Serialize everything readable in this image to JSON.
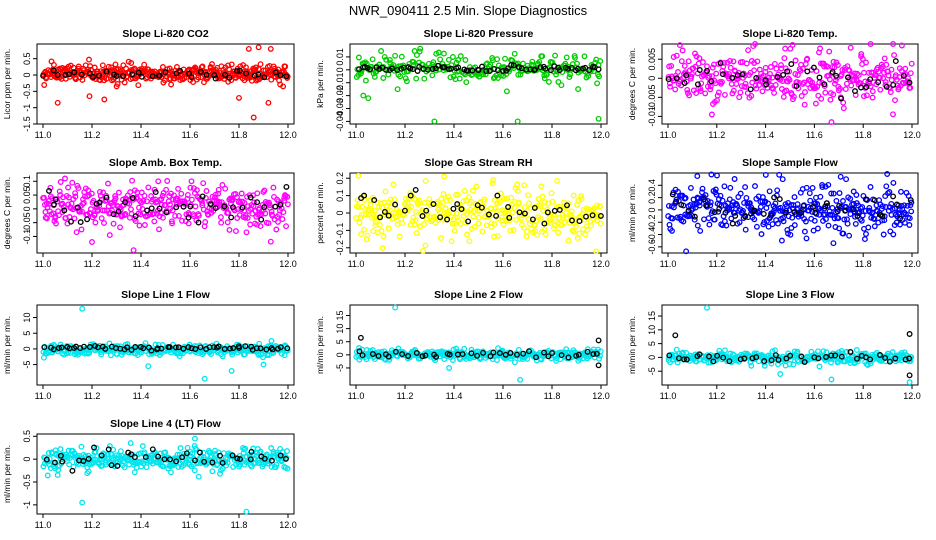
{
  "figure_title": "NWR_090411  2.5 Min. Slope Diagnostics",
  "chart_data": [
    {
      "type": "scatter",
      "title": "Slope Li-820 CO2",
      "ylabel": "Licor ppm per min.",
      "color": "#ff0000",
      "xlim": [
        11.0,
        12.0
      ],
      "ylim": [
        -1.5,
        0.95
      ],
      "x_ticks": [
        "11.0",
        "11.2",
        "11.4",
        "11.6",
        "11.8",
        "12.0"
      ],
      "y_ticks": [
        -1.5,
        -1.0,
        -0.5,
        0.0,
        0.5
      ],
      "series": [
        {
          "name": "all",
          "color": "#ff0000",
          "count": 380,
          "center": 0.05,
          "spread": 0.14,
          "outliers": [
            [
              11.06,
              -0.85
            ],
            [
              11.19,
              -0.65
            ],
            [
              11.25,
              -0.75
            ],
            [
              11.8,
              -0.7
            ],
            [
              11.84,
              0.8
            ],
            [
              11.86,
              -1.3
            ],
            [
              11.88,
              0.85
            ],
            [
              11.92,
              -0.85
            ],
            [
              11.93,
              0.8
            ],
            [
              11.98,
              -0.35
            ]
          ]
        },
        {
          "name": "selected",
          "color": "#000000",
          "count": 40,
          "center": 0.02,
          "spread": 0.08,
          "outliers": []
        }
      ]
    },
    {
      "type": "scatter",
      "title": "Slope Li-820 Pressure",
      "ylabel": "kPa per min.",
      "color": "#00cc00",
      "xlim": [
        11.0,
        12.0
      ],
      "ylim": [
        -0.042,
        0.02
      ],
      "x_ticks": [
        "11.0",
        "11.2",
        "11.4",
        "11.6",
        "11.8",
        "12.0"
      ],
      "y_ticks": [
        -0.04,
        -0.03,
        -0.02,
        -0.01,
        0.0,
        0.01
      ],
      "series": [
        {
          "name": "all",
          "color": "#00cc00",
          "count": 260,
          "center": 0.001,
          "spread": 0.005,
          "outliers": [
            [
              11.03,
              -0.02
            ],
            [
              11.32,
              -0.04
            ],
            [
              11.66,
              -0.04
            ],
            [
              11.99,
              -0.038
            ],
            [
              11.17,
              -0.015
            ],
            [
              11.05,
              -0.022
            ]
          ]
        },
        {
          "name": "selected",
          "color": "#000000",
          "count": 70,
          "center": 0.001,
          "spread": 0.0015,
          "outliers": []
        }
      ]
    },
    {
      "type": "scatter",
      "title": "Slope Li-820 Temp.",
      "ylabel": "degrees C per min.",
      "color": "#ff00ff",
      "xlim": [
        11.0,
        12.0
      ],
      "ylim": [
        -0.012,
        0.009
      ],
      "x_ticks": [
        "11.0",
        "11.2",
        "11.4",
        "11.6",
        "11.8",
        "12.0"
      ],
      "y_ticks": [
        -0.01,
        -0.005,
        0.0,
        0.005
      ],
      "series": [
        {
          "name": "all",
          "color": "#ff00ff",
          "count": 360,
          "center": 0.0,
          "spread": 0.0035,
          "outliers": [
            [
              11.67,
              -0.0115
            ],
            [
              11.48,
              0.0078
            ],
            [
              11.18,
              -0.0095
            ]
          ]
        },
        {
          "name": "selected",
          "color": "#000000",
          "count": 40,
          "center": 0.0003,
          "spread": 0.0025,
          "outliers": []
        }
      ]
    },
    {
      "type": "scatter",
      "title": "Slope Amb. Box Temp.",
      "ylabel": "degrees C per min.",
      "color": "#ff00ff",
      "xlim": [
        11.0,
        12.0
      ],
      "ylim": [
        -0.16,
        0.13
      ],
      "x_ticks": [
        "11.0",
        "11.2",
        "11.4",
        "11.6",
        "11.8",
        "12.0"
      ],
      "y_ticks": [
        -0.1,
        -0.05,
        0.0,
        0.05,
        0.1
      ],
      "series": [
        {
          "name": "all",
          "color": "#ff00ff",
          "count": 380,
          "center": 0.01,
          "spread": 0.04,
          "outliers": [
            [
              11.09,
              0.11
            ],
            [
              11.37,
              -0.15
            ],
            [
              11.2,
              -0.12
            ],
            [
              11.47,
              0.1
            ]
          ]
        },
        {
          "name": "selected",
          "color": "#000000",
          "count": 40,
          "center": 0.0,
          "spread": 0.03,
          "outliers": []
        }
      ]
    },
    {
      "type": "scatter",
      "title": "Slope Gas Stream RH",
      "ylabel": "percent per min.",
      "color": "#ffff00",
      "xlim": [
        11.0,
        12.0
      ],
      "ylim": [
        -0.23,
        0.23
      ],
      "x_ticks": [
        "11.0",
        "11.2",
        "11.4",
        "11.6",
        "11.8",
        "12.0"
      ],
      "y_ticks": [
        -0.2,
        -0.1,
        0.0,
        0.1,
        0.2
      ],
      "series": [
        {
          "name": "all",
          "color": "#ffff00",
          "count": 360,
          "center": 0.0,
          "spread": 0.07,
          "outliers": [
            [
              11.36,
              0.21
            ],
            [
              11.98,
              -0.22
            ],
            [
              11.56,
              0.19
            ]
          ]
        },
        {
          "name": "selected",
          "color": "#000000",
          "count": 40,
          "center": 0.0,
          "spread": 0.06,
          "outliers": []
        }
      ]
    },
    {
      "type": "scatter",
      "title": "Slope Sample Flow",
      "ylabel": "ml/min per min.",
      "color": "#0000ff",
      "xlim": [
        11.0,
        12.0
      ],
      "ylim": [
        -0.7,
        0.6
      ],
      "x_ticks": [
        "11.0",
        "11.2",
        "11.4",
        "11.6",
        "11.8",
        "12.0"
      ],
      "y_ticks": [
        -0.6,
        -0.4,
        -0.2,
        0.0,
        0.2,
        0.4
      ],
      "series": [
        {
          "name": "all",
          "color": "#0000ff",
          "count": 380,
          "center": 0.0,
          "spread": 0.2,
          "outliers": [
            [
              11.12,
              0.55
            ],
            [
              11.47,
              0.5
            ],
            [
              11.73,
              0.5
            ]
          ]
        },
        {
          "name": "selected",
          "color": "#000000",
          "count": 40,
          "center": 0.0,
          "spread": 0.12,
          "outliers": []
        }
      ]
    },
    {
      "type": "scatter",
      "title": "Slope Line 1 Flow",
      "ylabel": "ml/min per min.",
      "color": "#00e5ee",
      "xlim": [
        11.0,
        12.0
      ],
      "ylim": [
        -11.5,
        14
      ],
      "x_ticks": [
        "11.0",
        "11.2",
        "11.4",
        "11.6",
        "11.8",
        "12.0"
      ],
      "y_ticks": [
        -5,
        0,
        5,
        10
      ],
      "series": [
        {
          "name": "all",
          "color": "#00e5ee",
          "count": 320,
          "center": -0.3,
          "spread": 0.9,
          "outliers": [
            [
              11.16,
              12.8
            ],
            [
              11.66,
              -9.5
            ],
            [
              11.77,
              -7.0
            ],
            [
              11.43,
              -5.5
            ],
            [
              11.9,
              -5.0
            ]
          ]
        },
        {
          "name": "selected",
          "color": "#000000",
          "count": 60,
          "center": 0.3,
          "spread": 0.4,
          "outliers": []
        }
      ]
    },
    {
      "type": "scatter",
      "title": "Slope Line 2 Flow",
      "ylabel": "ml/min per min.",
      "color": "#00e5ee",
      "xlim": [
        11.0,
        12.0
      ],
      "ylim": [
        -11.5,
        19
      ],
      "x_ticks": [
        "11.0",
        "11.2",
        "11.4",
        "11.6",
        "11.8",
        "12.0"
      ],
      "y_ticks": [
        -5,
        0,
        5,
        10,
        15
      ],
      "series": [
        {
          "name": "all",
          "color": "#00e5ee",
          "count": 320,
          "center": 0.0,
          "spread": 1.0,
          "outliers": [
            [
              11.16,
              18.0
            ],
            [
              11.67,
              -9.5
            ],
            [
              11.38,
              -5.0
            ]
          ]
        },
        {
          "name": "selected",
          "color": "#000000",
          "count": 40,
          "center": 0.2,
          "spread": 0.8,
          "outliers": [
            [
              11.02,
              6.5
            ],
            [
              11.99,
              5.5
            ],
            [
              11.99,
              -4.0
            ]
          ]
        }
      ]
    },
    {
      "type": "scatter",
      "title": "Slope Line 3 Flow",
      "ylabel": "ml/min per min.",
      "color": "#00e5ee",
      "xlim": [
        11.0,
        12.0
      ],
      "ylim": [
        -10,
        19
      ],
      "x_ticks": [
        "11.0",
        "11.2",
        "11.4",
        "11.6",
        "11.8",
        "12.0"
      ],
      "y_ticks": [
        -5,
        0,
        5,
        10,
        15
      ],
      "series": [
        {
          "name": "all",
          "color": "#00e5ee",
          "count": 320,
          "center": 0.0,
          "spread": 1.1,
          "outliers": [
            [
              11.16,
              18.0
            ],
            [
              11.67,
              -8.0
            ],
            [
              11.46,
              -6.0
            ],
            [
              11.99,
              -9.0
            ]
          ]
        },
        {
          "name": "selected",
          "color": "#000000",
          "count": 40,
          "center": 0.0,
          "spread": 1.0,
          "outliers": [
            [
              11.03,
              8.0
            ],
            [
              11.99,
              8.5
            ],
            [
              11.99,
              -6.5
            ]
          ]
        }
      ]
    },
    {
      "type": "scatter",
      "title": "Slope Line 4 (LT) Flow",
      "ylabel": "ml/min per min.",
      "color": "#00e5ee",
      "xlim": [
        11.0,
        12.0
      ],
      "ylim": [
        -1.2,
        0.55
      ],
      "x_ticks": [
        "11.0",
        "11.2",
        "11.4",
        "11.6",
        "11.8",
        "12.0"
      ],
      "y_ticks": [
        -1.0,
        -0.5,
        0.0,
        0.5
      ],
      "series": [
        {
          "name": "all",
          "color": "#00e5ee",
          "count": 360,
          "center": 0.0,
          "spread": 0.12,
          "outliers": [
            [
              11.16,
              -0.95
            ],
            [
              11.83,
              -1.15
            ],
            [
              11.62,
              0.45
            ],
            [
              11.06,
              -0.35
            ]
          ]
        },
        {
          "name": "selected",
          "color": "#000000",
          "count": 40,
          "center": 0.02,
          "spread": 0.1,
          "outliers": []
        }
      ]
    }
  ]
}
